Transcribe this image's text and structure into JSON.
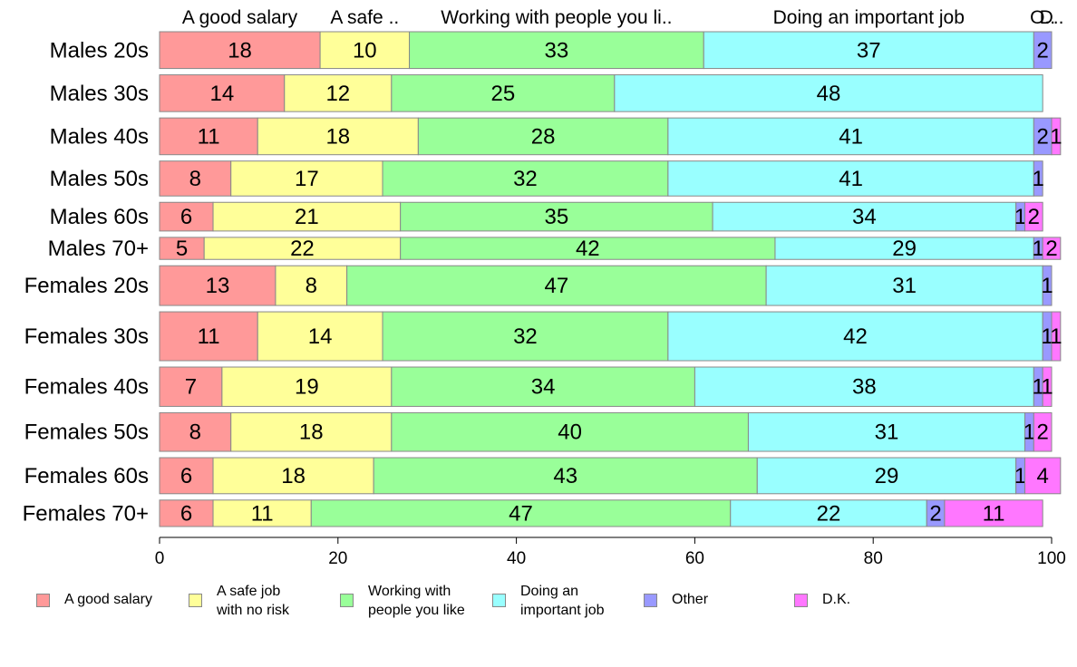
{
  "chart_data": {
    "type": "bar",
    "orientation": "horizontal",
    "stacked": true,
    "categories": [
      "Males 20s",
      "Males 30s",
      "Males 40s",
      "Males 50s",
      "Males 60s",
      "Males 70+",
      "Females 20s",
      "Females 30s",
      "Females 40s",
      "Females 50s",
      "Females 60s",
      "Females 70+"
    ],
    "category_weights": [
      1.0,
      1.0,
      1.0,
      0.95,
      0.78,
      0.6,
      1.08,
      1.33,
      1.07,
      1.05,
      0.98,
      0.72
    ],
    "series": [
      {
        "name": "A good salary",
        "top_label": "A good salary",
        "color": "#FF9999",
        "values": [
          18,
          14,
          11,
          8,
          6,
          5,
          13,
          11,
          7,
          8,
          6,
          6
        ]
      },
      {
        "name": "A safe job with no risk",
        "legend_label": "A safe job\nwith no risk",
        "top_label": "A safe ..",
        "color": "#FFFF99",
        "values": [
          10,
          12,
          18,
          17,
          21,
          22,
          8,
          14,
          19,
          18,
          18,
          11
        ]
      },
      {
        "name": "Working with people you like",
        "legend_label": "Working with\npeople you like",
        "top_label": "Working with people you li..",
        "color": "#99FF99",
        "values": [
          33,
          25,
          28,
          32,
          35,
          42,
          47,
          32,
          34,
          40,
          43,
          47
        ]
      },
      {
        "name": "Doing an important job",
        "legend_label": "Doing an\nimportant job",
        "top_label": "Doing an important job",
        "color": "#99FFFF",
        "values": [
          37,
          48,
          41,
          41,
          34,
          29,
          31,
          42,
          38,
          31,
          29,
          22
        ]
      },
      {
        "name": "Other",
        "top_label": "O..",
        "color": "#9999FF",
        "values": [
          2,
          0,
          2,
          1,
          1,
          1,
          1,
          1,
          1,
          1,
          1,
          2
        ]
      },
      {
        "name": "D.K.",
        "top_label": "D..",
        "color": "#FF77FF",
        "values": [
          0,
          0,
          1,
          0,
          2,
          2,
          0,
          1,
          1,
          2,
          4,
          11
        ]
      }
    ],
    "xlim": [
      0,
      100
    ],
    "xticks": [
      0,
      20,
      40,
      60,
      80,
      100
    ],
    "xlabel": "",
    "ylabel": "",
    "title": "",
    "legend_position": "bottom",
    "grid": false
  }
}
